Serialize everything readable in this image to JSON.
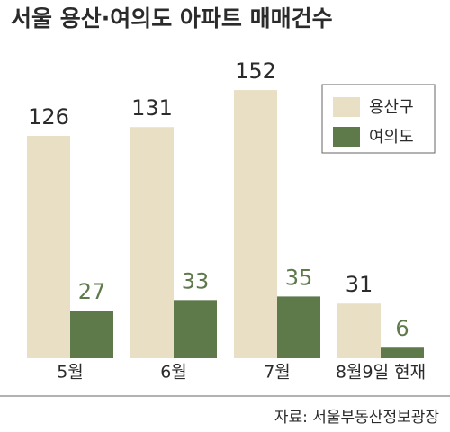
{
  "chart_data": {
    "type": "bar",
    "title": "서울 용산·여의도 아파트 매매건수",
    "categories": [
      "5월",
      "6월",
      "7월",
      "8월9일 현재"
    ],
    "series": [
      {
        "name": "용산구",
        "color": "#e8dfc4",
        "values": [
          126,
          131,
          152,
          31
        ]
      },
      {
        "name": "여의도",
        "color": "#5e7a4b",
        "values": [
          27,
          33,
          35,
          6
        ]
      }
    ],
    "source": "자료: 서울부동산정보광장",
    "legend": "top-right"
  }
}
